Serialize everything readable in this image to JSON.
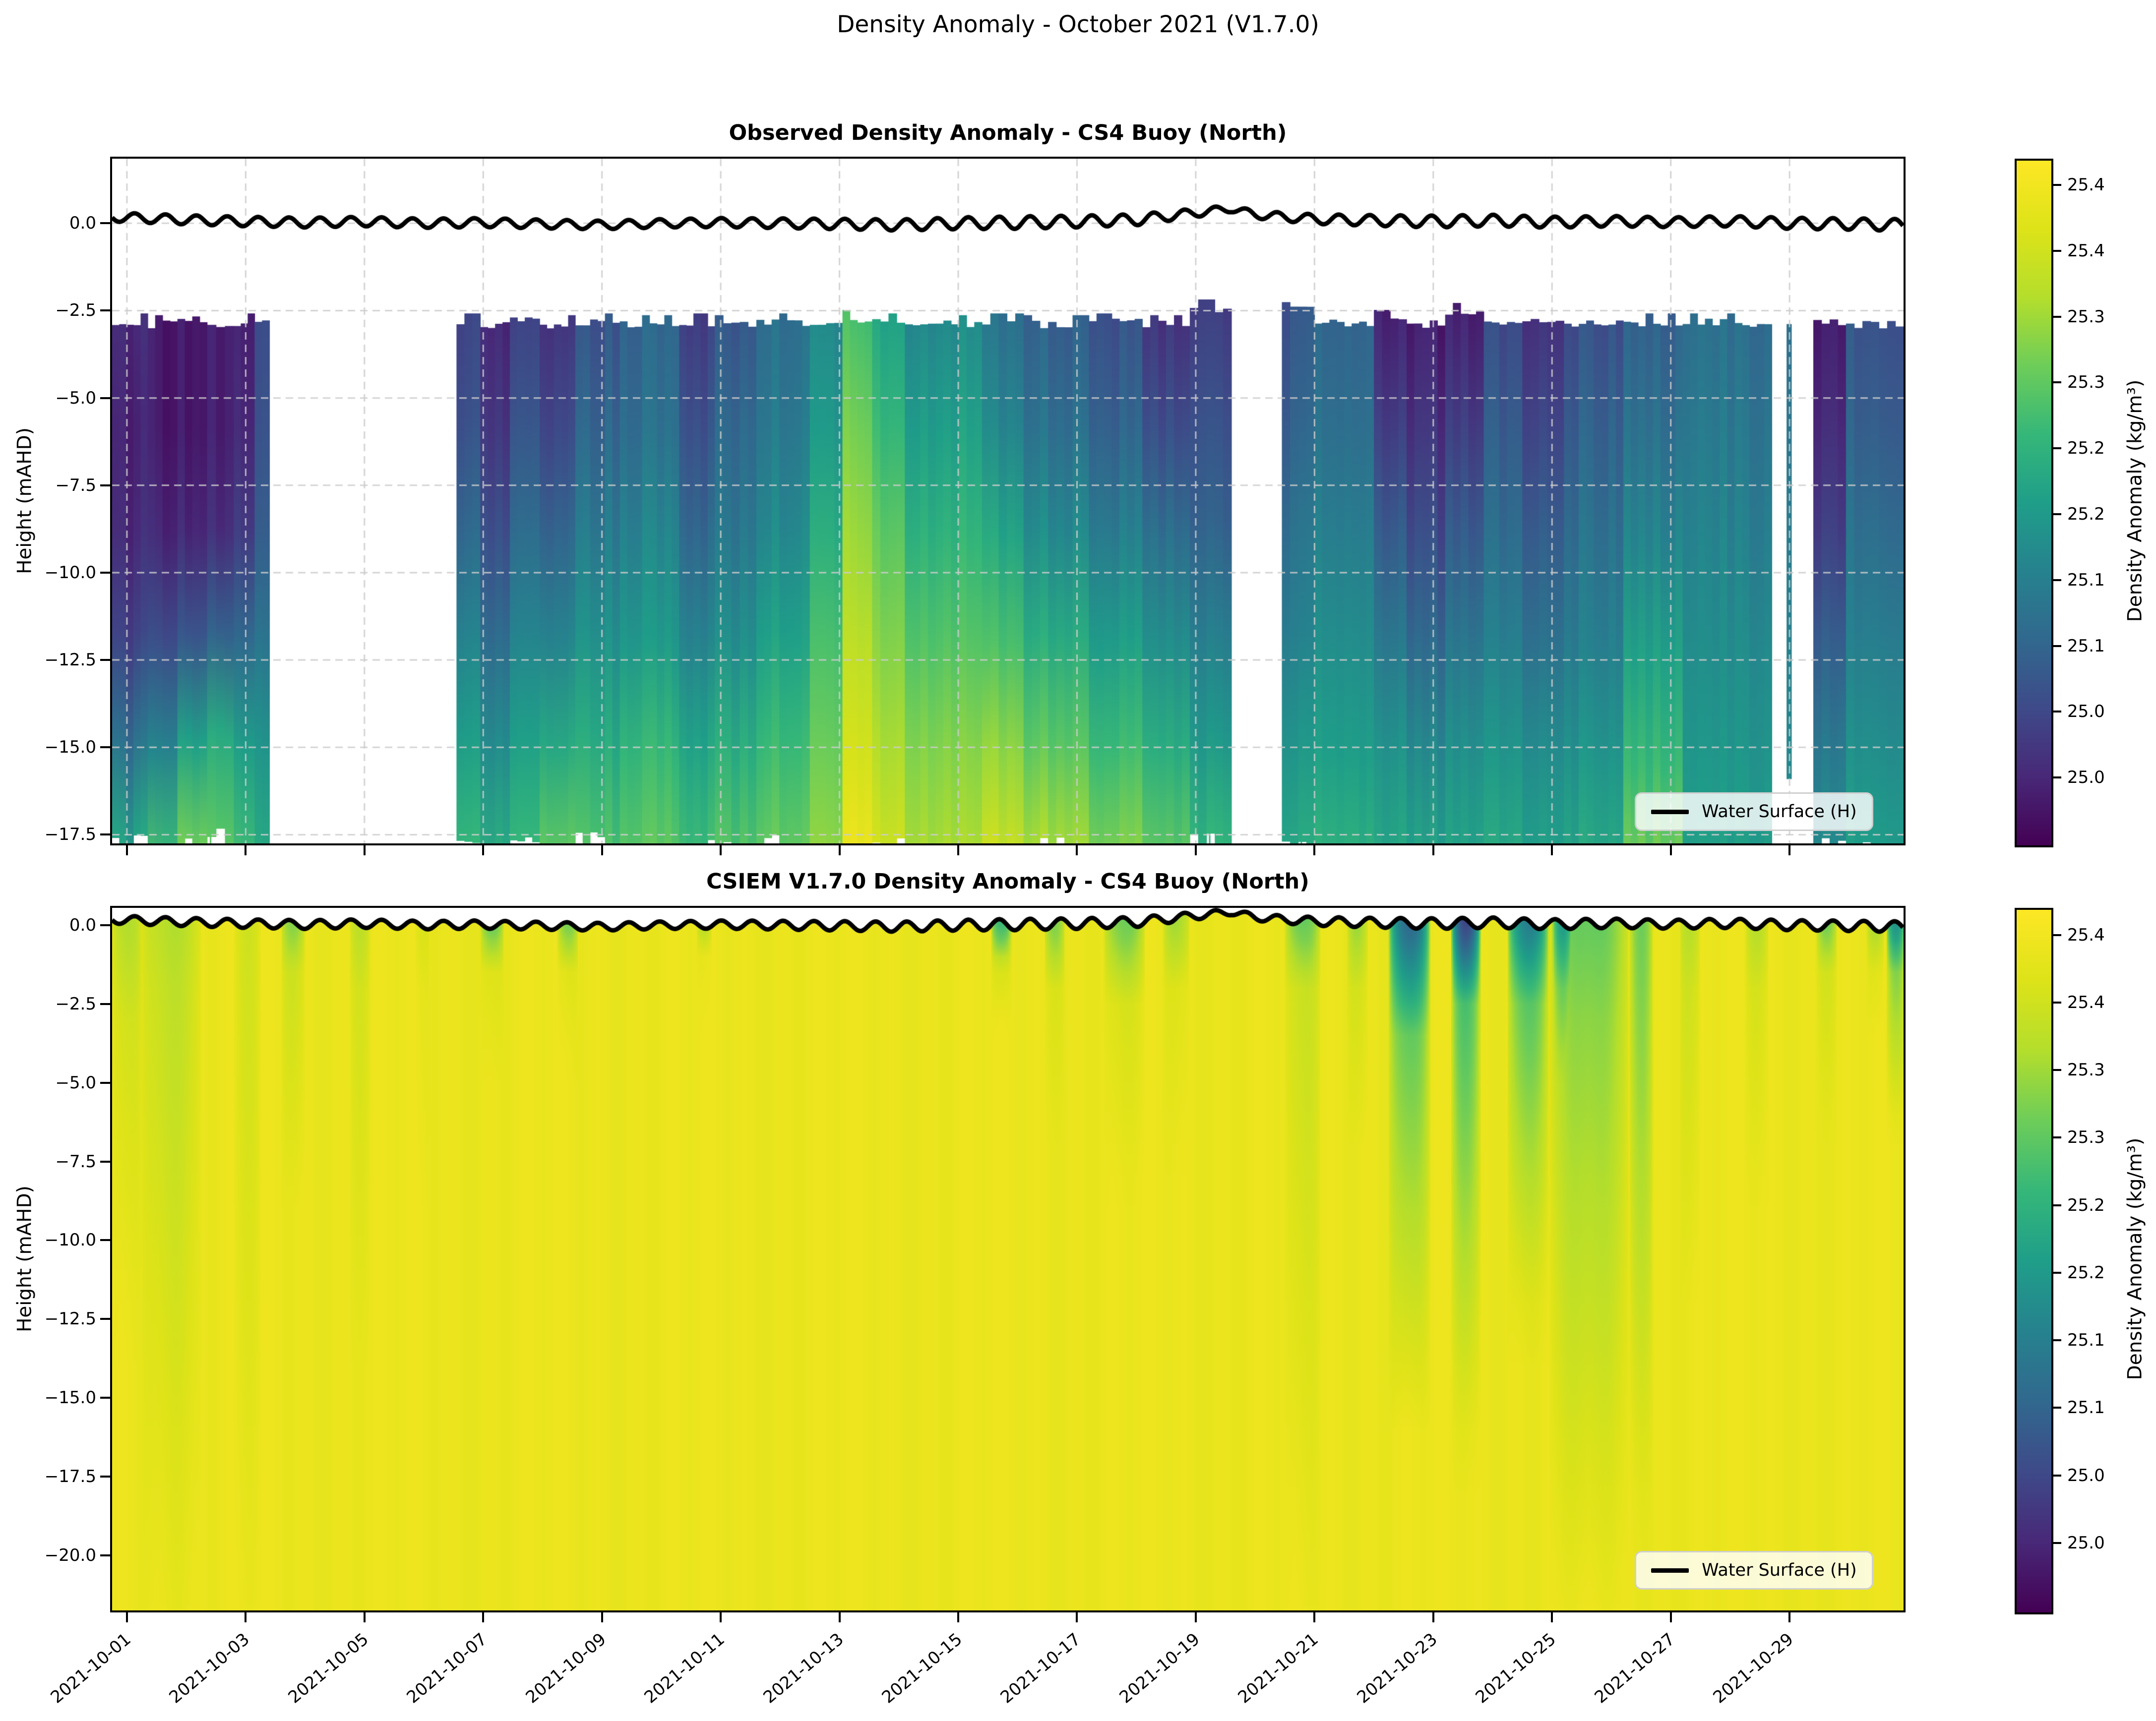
{
  "figure": {
    "title": "Density Anomaly - October 2021 (V1.7.0)"
  },
  "panels": [
    {
      "id": "observed",
      "title": "Observed Density Anomaly - CS4 Buoy (North)",
      "ylabel": "Height (mAHD)",
      "legend_label": "Water Surface (H)",
      "ylim": [
        1.85,
        -17.75
      ],
      "yticks": [
        {
          "v": 0.0,
          "label": "0.0"
        },
        {
          "v": -2.5,
          "label": "−2.5"
        },
        {
          "v": -5.0,
          "label": "−5.0"
        },
        {
          "v": -7.5,
          "label": "−7.5"
        },
        {
          "v": -10.0,
          "label": "−10.0"
        },
        {
          "v": -12.5,
          "label": "−12.5"
        },
        {
          "v": -15.0,
          "label": "−15.0"
        },
        {
          "v": -17.5,
          "label": "−17.5"
        }
      ]
    },
    {
      "id": "model",
      "title": "CSIEM V1.7.0 Density Anomaly - CS4 Buoy (North)",
      "ylabel": "Height (mAHD)",
      "legend_label": "Water Surface (H)",
      "ylim": [
        0.55,
        -21.75
      ],
      "yticks": [
        {
          "v": 0.0,
          "label": "0.0"
        },
        {
          "v": -2.5,
          "label": "−2.5"
        },
        {
          "v": -5.0,
          "label": "−5.0"
        },
        {
          "v": -7.5,
          "label": "−7.5"
        },
        {
          "v": -10.0,
          "label": "−10.0"
        },
        {
          "v": -12.5,
          "label": "−12.5"
        },
        {
          "v": -15.0,
          "label": "−15.0"
        },
        {
          "v": -17.5,
          "label": "−17.5"
        },
        {
          "v": -20.0,
          "label": "−20.0"
        }
      ]
    }
  ],
  "x_axis": {
    "range_days": [
      -0.25,
      29.92
    ],
    "tick_days": [
      0,
      2,
      4,
      6,
      8,
      10,
      12,
      14,
      16,
      18,
      20,
      22,
      24,
      26,
      28
    ],
    "tick_labels": [
      "2021-10-01",
      "2021-10-03",
      "2021-10-05",
      "2021-10-07",
      "2021-10-09",
      "2021-10-11",
      "2021-10-13",
      "2021-10-15",
      "2021-10-17",
      "2021-10-19",
      "2021-10-21",
      "2021-10-23",
      "2021-10-25",
      "2021-10-27",
      "2021-10-29"
    ]
  },
  "colorbar": {
    "label": "Density Anomaly (kg/m³)",
    "tick_values": [
      25.45,
      25.4,
      25.35,
      25.3,
      25.25,
      25.2,
      25.15,
      25.1,
      25.05,
      25.0
    ],
    "tick_labels": [
      "25.4",
      "25.4",
      "25.3",
      "25.3",
      "25.2",
      "25.2",
      "25.1",
      "25.1",
      "25.0",
      "25.0"
    ]
  },
  "colormap": {
    "name": "viridis",
    "vmin": 24.95,
    "vmax": 25.47,
    "stops": [
      [
        0.0,
        "#440154"
      ],
      [
        0.1,
        "#482878"
      ],
      [
        0.2,
        "#3e4a89"
      ],
      [
        0.3,
        "#31688e"
      ],
      [
        0.4,
        "#26828e"
      ],
      [
        0.5,
        "#1f9e89"
      ],
      [
        0.6,
        "#35b779"
      ],
      [
        0.7,
        "#6dcd59"
      ],
      [
        0.8,
        "#b4de2c"
      ],
      [
        0.9,
        "#dde318"
      ],
      [
        1.0,
        "#fde725"
      ]
    ]
  },
  "style": {
    "grid_color": "rgba(205,205,205,0.85)",
    "surface_line_color": "#000000",
    "texture": {
      "substep_days": 0.13,
      "value_jitter": 0.016,
      "top_jitter": 0.3,
      "bottom_jitter": 0.8
    }
  },
  "chart_data": [
    {
      "type": "heatmap",
      "name": "observed_density_anomaly",
      "units": "kg/m³",
      "columns_format": "[day_start, day_end, z_top_m, z_bottom_m, [density at equal depth fractions 0,0.2,0.4,0.6,0.8,1 from top to bottom]]",
      "columns": [
        [
          -0.25,
          0.35,
          -3.0,
          -17.6,
          [
            25.0,
            24.99,
            25.0,
            25.04,
            25.12,
            25.22
          ]
        ],
        [
          0.35,
          0.85,
          -3.05,
          -18.0,
          [
            24.98,
            24.98,
            25.0,
            25.06,
            25.16,
            25.27
          ]
        ],
        [
          0.85,
          1.35,
          -2.9,
          -17.8,
          [
            24.99,
            24.99,
            25.01,
            25.08,
            25.22,
            25.32
          ]
        ],
        [
          1.35,
          1.8,
          -3.05,
          -17.5,
          [
            25.0,
            25.0,
            25.02,
            25.1,
            25.24,
            25.3
          ]
        ],
        [
          1.8,
          2.15,
          -3.0,
          -17.9,
          [
            25.01,
            25.02,
            25.05,
            25.12,
            25.22,
            25.28
          ]
        ],
        [
          2.15,
          2.4,
          -3.0,
          -17.6,
          [
            25.07,
            25.08,
            25.1,
            25.14,
            25.2,
            25.24
          ]
        ],
        [
          5.55,
          5.95,
          -3.0,
          -17.8,
          [
            25.05,
            25.07,
            25.11,
            25.16,
            25.21,
            25.26
          ]
        ],
        [
          5.95,
          6.45,
          -3.05,
          -18.1,
          [
            25.01,
            25.03,
            25.07,
            25.12,
            25.18,
            25.24
          ]
        ],
        [
          6.45,
          6.95,
          -2.95,
          -17.7,
          [
            25.06,
            25.09,
            25.13,
            25.17,
            25.22,
            25.27
          ]
        ],
        [
          6.95,
          7.55,
          -3.05,
          -17.9,
          [
            25.02,
            25.05,
            25.1,
            25.16,
            25.23,
            25.3
          ]
        ],
        [
          7.55,
          8.3,
          -3.0,
          -17.6,
          [
            25.08,
            25.11,
            25.15,
            25.19,
            25.24,
            25.29
          ]
        ],
        [
          8.3,
          9.3,
          -3.05,
          -18.0,
          [
            25.1,
            25.12,
            25.16,
            25.2,
            25.26,
            25.3
          ]
        ],
        [
          9.3,
          9.9,
          -3.0,
          -17.8,
          [
            25.04,
            25.07,
            25.11,
            25.16,
            25.22,
            25.27
          ]
        ],
        [
          9.9,
          10.6,
          -3.05,
          -17.9,
          [
            25.09,
            25.12,
            25.15,
            25.19,
            25.25,
            25.3
          ]
        ],
        [
          10.6,
          11.5,
          -3.0,
          -17.7,
          [
            25.13,
            25.15,
            25.18,
            25.22,
            25.27,
            25.31
          ]
        ],
        [
          11.5,
          12.05,
          -3.05,
          -18.0,
          [
            25.17,
            25.2,
            25.24,
            25.28,
            25.31,
            25.34
          ]
        ],
        [
          12.05,
          12.55,
          -2.9,
          -18.2,
          [
            25.28,
            25.32,
            25.35,
            25.38,
            25.41,
            25.45
          ]
        ],
        [
          12.55,
          13.1,
          -3.0,
          -17.8,
          [
            25.22,
            25.26,
            25.3,
            25.33,
            25.36,
            25.4
          ]
        ],
        [
          13.1,
          14.4,
          -3.05,
          -17.9,
          [
            25.17,
            25.21,
            25.25,
            25.29,
            25.33,
            25.36
          ]
        ],
        [
          14.4,
          15.1,
          -3.0,
          -18.3,
          [
            25.12,
            25.16,
            25.22,
            25.28,
            25.34,
            25.4
          ]
        ],
        [
          15.1,
          16.2,
          -3.05,
          -17.8,
          [
            25.1,
            25.13,
            25.18,
            25.24,
            25.3,
            25.36
          ]
        ],
        [
          16.2,
          17.1,
          -3.0,
          -17.9,
          [
            25.07,
            25.1,
            25.15,
            25.21,
            25.27,
            25.33
          ]
        ],
        [
          17.1,
          17.9,
          -3.05,
          -18.0,
          [
            25.02,
            25.06,
            25.12,
            25.18,
            25.24,
            25.3
          ]
        ],
        [
          17.9,
          18.6,
          -2.6,
          -17.7,
          [
            25.04,
            25.07,
            25.1,
            25.15,
            25.2,
            25.26
          ]
        ],
        [
          19.45,
          20.0,
          -2.45,
          -17.8,
          [
            25.07,
            25.09,
            25.12,
            25.15,
            25.19,
            25.23
          ]
        ],
        [
          20.0,
          21.0,
          -3.0,
          -18.2,
          [
            25.1,
            25.12,
            25.15,
            25.18,
            25.21,
            25.25
          ]
        ],
        [
          21.0,
          21.55,
          -2.9,
          -17.9,
          [
            25.0,
            25.04,
            25.09,
            25.14,
            25.19,
            25.23
          ]
        ],
        [
          21.55,
          22.2,
          -3.05,
          -18.0,
          [
            24.99,
            25.02,
            25.06,
            25.11,
            25.17,
            25.22
          ]
        ],
        [
          22.2,
          22.85,
          -2.7,
          -17.8,
          [
            24.99,
            25.03,
            25.08,
            25.13,
            25.18,
            25.22
          ]
        ],
        [
          22.85,
          23.5,
          -3.0,
          -18.1,
          [
            25.05,
            25.08,
            25.11,
            25.15,
            25.19,
            25.23
          ]
        ],
        [
          23.5,
          24.2,
          -2.95,
          -17.9,
          [
            25.01,
            25.04,
            25.08,
            25.12,
            25.17,
            25.21
          ]
        ],
        [
          24.2,
          25.2,
          -3.05,
          -18.0,
          [
            25.06,
            25.09,
            25.12,
            25.15,
            25.19,
            25.23
          ]
        ],
        [
          25.2,
          26.2,
          -3.0,
          -18.6,
          [
            25.1,
            25.13,
            25.17,
            25.22,
            25.27,
            25.33
          ]
        ],
        [
          26.2,
          27.7,
          -3.0,
          -19.2,
          [
            25.12,
            25.14,
            25.16,
            25.18,
            25.2,
            25.22
          ]
        ],
        [
          27.95,
          28.03,
          -3.0,
          -16.0,
          [
            25.12,
            25.13,
            25.14,
            25.15,
            25.16,
            25.17
          ]
        ],
        [
          28.4,
          28.95,
          -3.0,
          -17.8,
          [
            24.99,
            25.01,
            25.04,
            25.09,
            25.14,
            25.18
          ]
        ],
        [
          28.95,
          29.92,
          -3.05,
          -17.9,
          [
            25.07,
            25.09,
            25.12,
            25.15,
            25.18,
            25.21
          ]
        ]
      ]
    },
    {
      "type": "heatmap",
      "name": "csiem_model_density_anomaly",
      "units": "kg/m³",
      "base_value": 25.44,
      "z_bottom": -21.75,
      "plumes_format": "[day_start, day_end, value_at_surface, z_core_m, value_at_core, z_fadeout_m]",
      "plumes": [
        [
          -0.25,
          0.25,
          25.36,
          -3.0,
          25.4,
          -13.0
        ],
        [
          0.25,
          1.25,
          25.37,
          -2.0,
          25.385,
          -22.0
        ],
        [
          1.8,
          2.25,
          25.4,
          -2.0,
          25.405,
          -22.0
        ],
        [
          2.6,
          3.0,
          25.33,
          -1.5,
          25.4,
          -9.0
        ],
        [
          3.75,
          4.1,
          25.38,
          -2.0,
          25.41,
          -14.0
        ],
        [
          4.85,
          5.1,
          25.41,
          -2.0,
          25.43,
          -9.0
        ],
        [
          5.95,
          6.35,
          25.3,
          -1.5,
          25.42,
          -5.0
        ],
        [
          7.25,
          7.6,
          25.31,
          -1.5,
          25.42,
          -4.5
        ],
        [
          9.6,
          9.85,
          25.36,
          -1.0,
          25.43,
          -3.5
        ],
        [
          14.55,
          14.9,
          25.24,
          -1.2,
          25.4,
          -3.2
        ],
        [
          15.45,
          15.8,
          25.33,
          -2.0,
          25.42,
          -6.5
        ],
        [
          16.45,
          17.15,
          25.31,
          -2.5,
          25.41,
          -8.5
        ],
        [
          17.45,
          17.9,
          25.35,
          -2.0,
          25.42,
          -7.5
        ],
        [
          19.5,
          20.1,
          25.3,
          -2.0,
          25.39,
          -22.0
        ],
        [
          20.55,
          20.9,
          25.35,
          -2.0,
          25.41,
          -7.0
        ],
        [
          21.25,
          21.95,
          25.1,
          -3.5,
          25.3,
          -16.0
        ],
        [
          22.3,
          22.8,
          25.04,
          -2.5,
          25.28,
          -17.0
        ],
        [
          23.25,
          23.95,
          25.15,
          -2.5,
          25.3,
          -13.0
        ],
        [
          23.95,
          25.3,
          25.3,
          -3.0,
          25.33,
          -22.0
        ],
        [
          24.0,
          24.35,
          25.2,
          -2.0,
          25.31,
          -8.0
        ],
        [
          25.3,
          25.7,
          25.32,
          -3.0,
          25.34,
          -19.0
        ],
        [
          26.15,
          26.5,
          25.37,
          -2.0,
          25.4,
          -12.0
        ],
        [
          27.25,
          27.65,
          25.37,
          -2.0,
          25.41,
          -8.5
        ],
        [
          28.45,
          28.8,
          25.32,
          -1.5,
          25.41,
          -6.5
        ],
        [
          29.3,
          29.6,
          25.35,
          -1.5,
          25.42,
          -3.5
        ],
        [
          29.63,
          29.95,
          25.18,
          -1.5,
          25.33,
          -6.5
        ]
      ]
    },
    {
      "type": "line",
      "name": "water_surface_height",
      "legend": "Water Surface (H)",
      "units": "mAHD",
      "period_days": 0.52,
      "trend": [
        [
          -0.25,
          0.18
        ],
        [
          1,
          0.1
        ],
        [
          2,
          0.05
        ],
        [
          3,
          0.02
        ],
        [
          4,
          0.05
        ],
        [
          5,
          0.0
        ],
        [
          6,
          0.02
        ],
        [
          7,
          -0.02
        ],
        [
          8,
          -0.05
        ],
        [
          9,
          0.0
        ],
        [
          10,
          0.02
        ],
        [
          11,
          0.0
        ],
        [
          12,
          -0.02
        ],
        [
          13,
          -0.05
        ],
        [
          14,
          0.0
        ],
        [
          15,
          0.02
        ],
        [
          16,
          0.05
        ],
        [
          17,
          0.1
        ],
        [
          18,
          0.3
        ],
        [
          18.6,
          0.42
        ],
        [
          19,
          0.25
        ],
        [
          19.5,
          0.18
        ],
        [
          20,
          0.12
        ],
        [
          21,
          0.08
        ],
        [
          22,
          0.05
        ],
        [
          23,
          0.08
        ],
        [
          24,
          0.03
        ],
        [
          25,
          0.06
        ],
        [
          26,
          0.03
        ],
        [
          27,
          0.06
        ],
        [
          28,
          0.0
        ],
        [
          29,
          -0.02
        ],
        [
          29.92,
          -0.05
        ]
      ],
      "amplitude": [
        [
          -0.25,
          0.13
        ],
        [
          3,
          0.14
        ],
        [
          6,
          0.13
        ],
        [
          9,
          0.12
        ],
        [
          12,
          0.15
        ],
        [
          15,
          0.18
        ],
        [
          17,
          0.16
        ],
        [
          18.6,
          0.1
        ],
        [
          20,
          0.14
        ],
        [
          22,
          0.17
        ],
        [
          24,
          0.16
        ],
        [
          26,
          0.14
        ],
        [
          28,
          0.16
        ],
        [
          29.92,
          0.17
        ]
      ]
    }
  ]
}
